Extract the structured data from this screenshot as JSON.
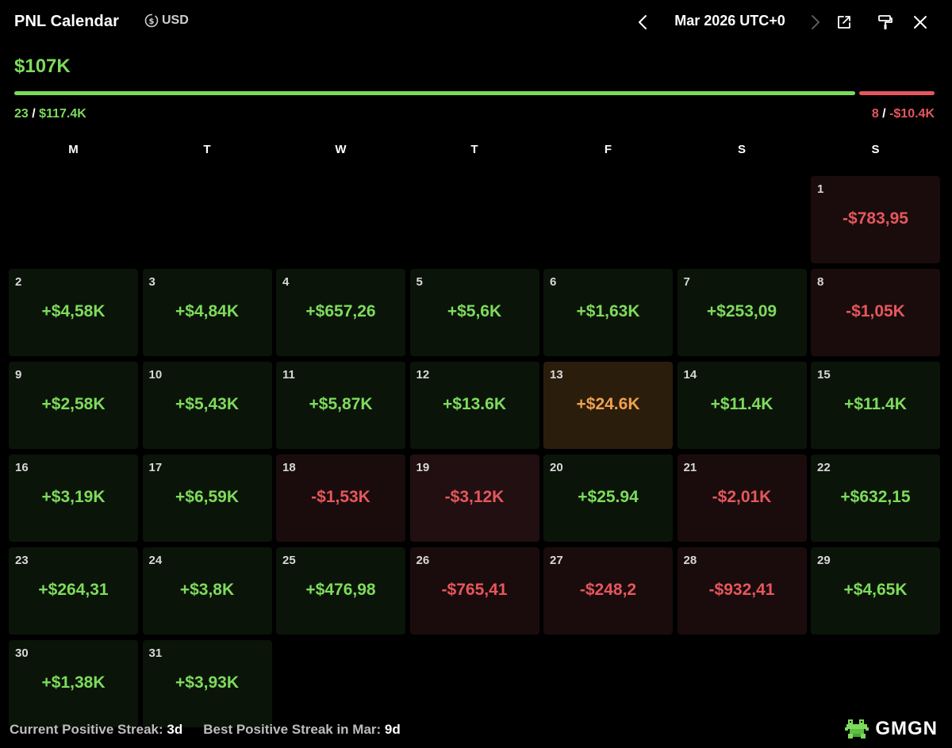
{
  "header": {
    "title": "PNL Calendar",
    "currency": "USD",
    "month_label": "Mar 2026 UTC+0"
  },
  "summary": {
    "total": "$107K",
    "positive_days": "23",
    "positive_amount": "$117.4K",
    "negative_days": "8",
    "negative_amount": "-$10.4K",
    "positive_share": 0.918
  },
  "weekdays": [
    "M",
    "T",
    "W",
    "T",
    "F",
    "S",
    "S"
  ],
  "calendar": {
    "leading_empty": 6,
    "days": [
      {
        "day": "1",
        "value": "-$783,95",
        "status": "neg"
      },
      {
        "day": "2",
        "value": "+$4,58K",
        "status": "pos"
      },
      {
        "day": "3",
        "value": "+$4,84K",
        "status": "pos"
      },
      {
        "day": "4",
        "value": "+$657,26",
        "status": "pos"
      },
      {
        "day": "5",
        "value": "+$5,6K",
        "status": "pos"
      },
      {
        "day": "6",
        "value": "+$1,63K",
        "status": "pos"
      },
      {
        "day": "7",
        "value": "+$253,09",
        "status": "pos"
      },
      {
        "day": "8",
        "value": "-$1,05K",
        "status": "neg"
      },
      {
        "day": "9",
        "value": "+$2,58K",
        "status": "pos"
      },
      {
        "day": "10",
        "value": "+$5,43K",
        "status": "pos"
      },
      {
        "day": "11",
        "value": "+$5,87K",
        "status": "pos"
      },
      {
        "day": "12",
        "value": "+$13.6K",
        "status": "pos"
      },
      {
        "day": "13",
        "value": "+$24.6K",
        "status": "best"
      },
      {
        "day": "14",
        "value": "+$11.4K",
        "status": "pos"
      },
      {
        "day": "15",
        "value": "+$11.4K",
        "status": "pos"
      },
      {
        "day": "16",
        "value": "+$3,19K",
        "status": "pos"
      },
      {
        "day": "17",
        "value": "+$6,59K",
        "status": "pos"
      },
      {
        "day": "18",
        "value": "-$1,53K",
        "status": "neg"
      },
      {
        "day": "19",
        "value": "-$3,12K",
        "status": "neg-strong"
      },
      {
        "day": "20",
        "value": "+$25.94",
        "status": "pos"
      },
      {
        "day": "21",
        "value": "-$2,01K",
        "status": "neg"
      },
      {
        "day": "22",
        "value": "+$632,15",
        "status": "pos"
      },
      {
        "day": "23",
        "value": "+$264,31",
        "status": "pos"
      },
      {
        "day": "24",
        "value": "+$3,8K",
        "status": "pos"
      },
      {
        "day": "25",
        "value": "+$476,98",
        "status": "pos"
      },
      {
        "day": "26",
        "value": "-$765,41",
        "status": "neg"
      },
      {
        "day": "27",
        "value": "-$248,2",
        "status": "neg"
      },
      {
        "day": "28",
        "value": "-$932,41",
        "status": "neg"
      },
      {
        "day": "29",
        "value": "+$4,65K",
        "status": "pos"
      },
      {
        "day": "30",
        "value": "+$1,38K",
        "status": "pos"
      },
      {
        "day": "31",
        "value": "+$3,93K",
        "status": "pos"
      }
    ]
  },
  "footer": {
    "current_streak_label": "Current Positive Streak:",
    "current_streak_value": "3d",
    "best_streak_label": "Best Positive Streak in Mar:",
    "best_streak_value": "9d"
  },
  "brand": {
    "name": "GMGN",
    "logo_icon": "frog-logo-icon"
  },
  "icons": {
    "currency": "dollar-coin-icon",
    "prev": "chevron-left-icon",
    "next": "chevron-right-icon",
    "share": "external-link-icon",
    "paint": "paint-roller-icon",
    "close": "close-icon"
  },
  "colors": {
    "positive": "#7ddb5c",
    "negative": "#e5575c",
    "best": "#f0a14e",
    "background": "#000000"
  }
}
